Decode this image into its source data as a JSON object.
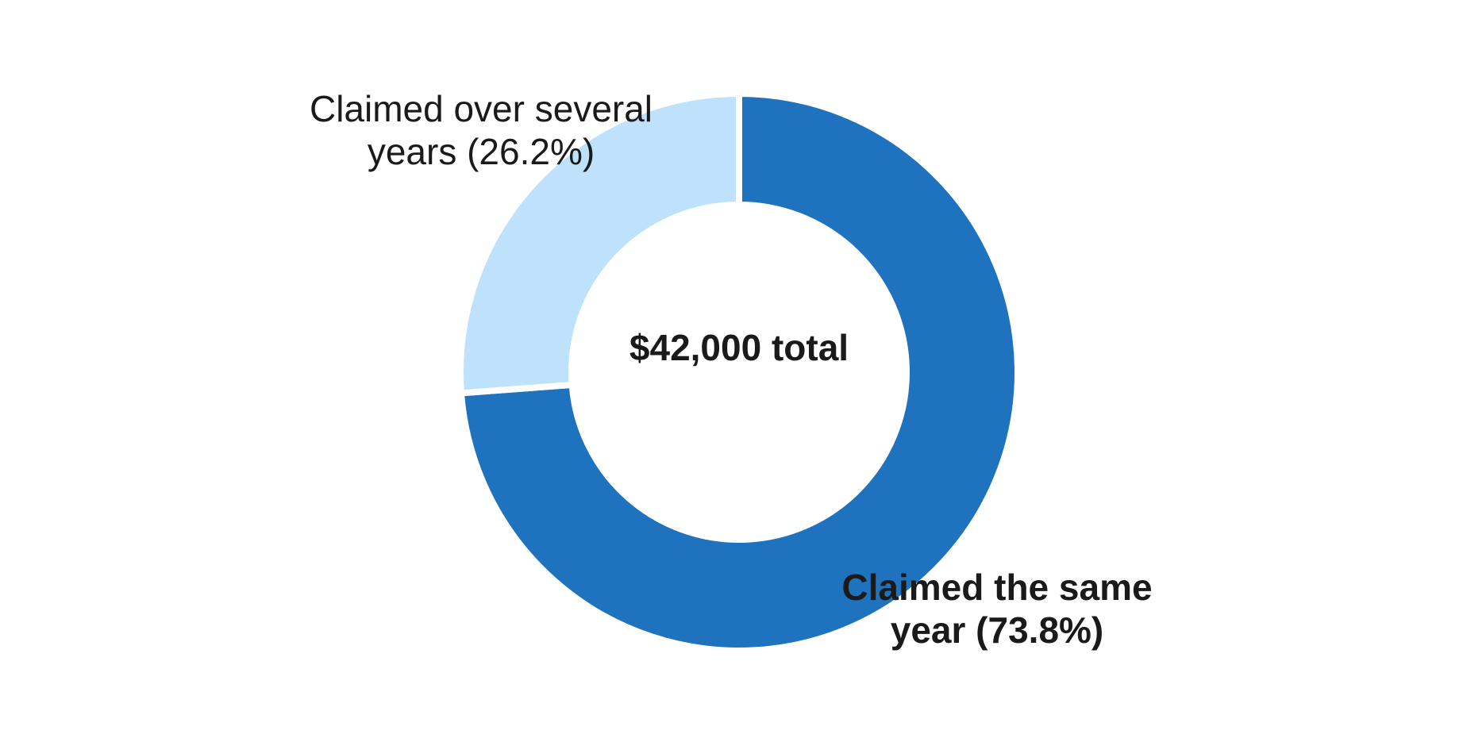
{
  "chart_data": {
    "type": "donut",
    "values": [
      73.8,
      26.2
    ],
    "value_labels": [
      "Claimed the same year (73.8%)",
      "Claimed over several years (26.2%)"
    ],
    "colors": [
      "#1f73be",
      "#bee2fc"
    ],
    "center_label": "$42,000 total"
  }
}
